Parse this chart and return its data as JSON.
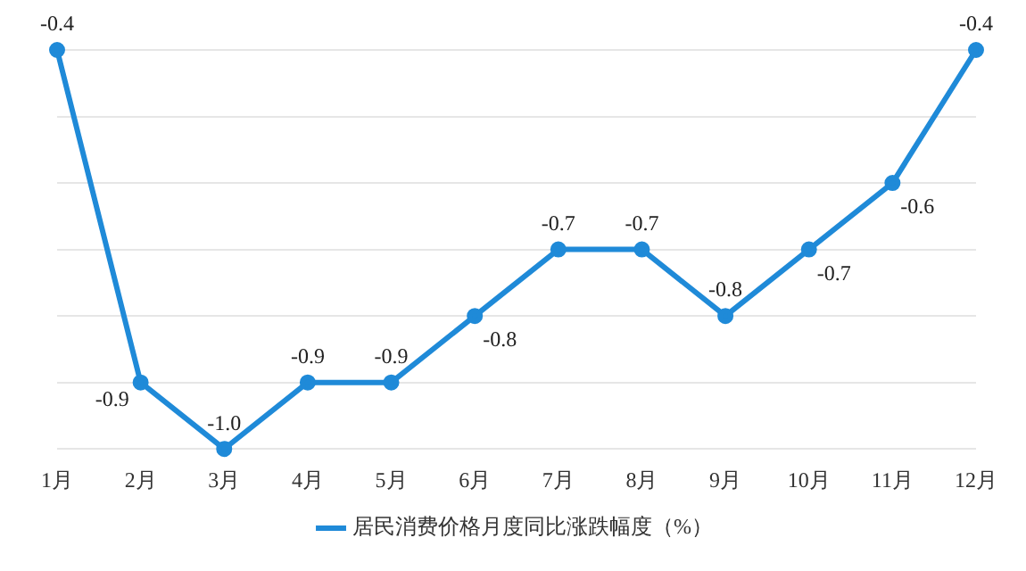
{
  "chart_data": {
    "type": "line",
    "categories": [
      "1月",
      "2月",
      "3月",
      "4月",
      "5月",
      "6月",
      "7月",
      "8月",
      "9月",
      "10月",
      "11月",
      "12月"
    ],
    "series": [
      {
        "name": "居民消费价格月度同比涨跌幅度（%）",
        "color": "#1f8ad8",
        "values": [
          -0.4,
          -0.9,
          -1.0,
          -0.9,
          -0.9,
          -0.8,
          -0.7,
          -0.7,
          -0.8,
          -0.7,
          -0.6,
          -0.4
        ],
        "value_labels": [
          "-0.4",
          "-0.9",
          "-1.0",
          "-0.9",
          "-0.9",
          "-0.8",
          "-0.7",
          "-0.7",
          "-0.8",
          "-0.7",
          "-0.6",
          "-0.4"
        ]
      }
    ],
    "tick_labels": "x",
    "grid": "y",
    "legend": "bottom",
    "marker": "circle",
    "line_style": "solid"
  }
}
